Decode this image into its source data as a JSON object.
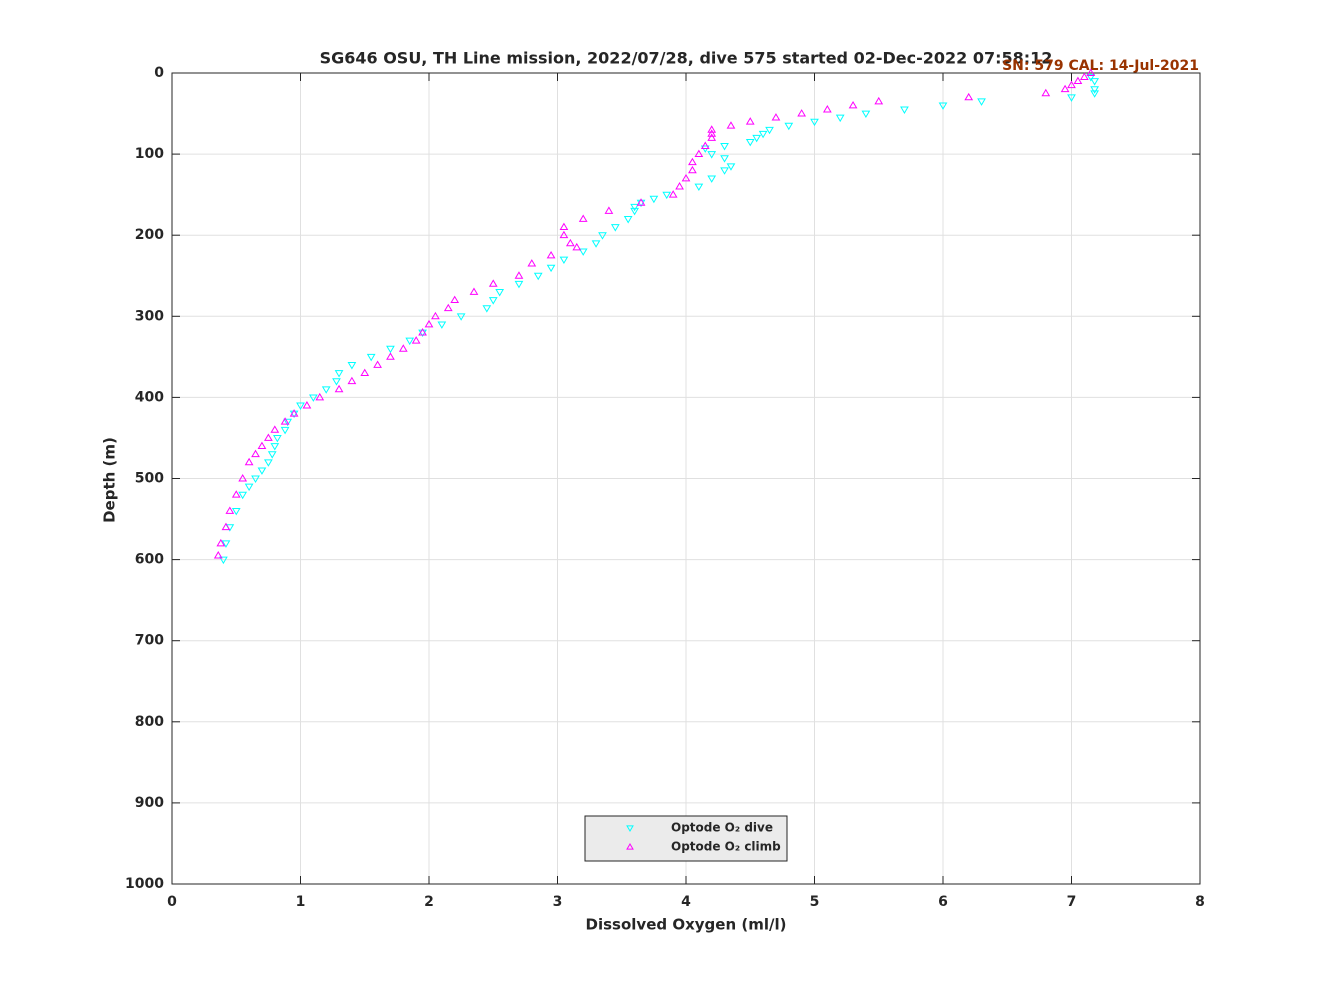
{
  "chart_data": {
    "type": "scatter",
    "title": "SG646 OSU, TH Line mission, 2022/07/28, dive 575 started 02-Dec-2022 07:58:12",
    "annotation": "SN: 579  CAL: 14-Jul-2021",
    "x_label": "Dissolved Oxygen (ml/l)",
    "y_label": "Depth (m)",
    "xlim": [
      0,
      8
    ],
    "xticks": [
      0,
      1,
      2,
      3,
      4,
      5,
      6,
      7,
      8
    ],
    "ylim": [
      0,
      1000
    ],
    "yticks": [
      0,
      100,
      200,
      300,
      400,
      500,
      600,
      700,
      800,
      900,
      1000
    ],
    "y_inverted": true,
    "grid": true,
    "legend": "bottom",
    "series": [
      {
        "name": "Optode O₂ dive",
        "color": "#00ffff",
        "marker": "v",
        "x": [
          7.15,
          7.18,
          7.18,
          7.18,
          7.0,
          6.3,
          6.0,
          5.7,
          5.4,
          5.2,
          5.0,
          4.8,
          4.65,
          4.6,
          4.55,
          4.5,
          4.3,
          4.15,
          4.2,
          4.3,
          4.35,
          4.3,
          4.2,
          4.1,
          3.85,
          3.75,
          3.65,
          3.6,
          3.6,
          3.55,
          3.45,
          3.35,
          3.3,
          3.2,
          3.05,
          2.95,
          2.85,
          2.7,
          2.55,
          2.5,
          2.45,
          2.25,
          2.1,
          1.95,
          1.85,
          1.7,
          1.55,
          1.4,
          1.3,
          1.28,
          1.2,
          1.1,
          1.0,
          0.95,
          0.9,
          0.88,
          0.82,
          0.8,
          0.78,
          0.75,
          0.7,
          0.65,
          0.6,
          0.55,
          0.5,
          0.45,
          0.42,
          0.4
        ],
        "values": [
          5,
          10,
          20,
          25,
          30,
          35,
          40,
          45,
          50,
          55,
          60,
          65,
          70,
          75,
          80,
          85,
          90,
          93,
          100,
          105,
          115,
          120,
          130,
          140,
          150,
          155,
          160,
          165,
          170,
          180,
          190,
          200,
          210,
          220,
          230,
          240,
          250,
          260,
          270,
          280,
          290,
          300,
          310,
          320,
          330,
          340,
          350,
          360,
          370,
          380,
          390,
          400,
          410,
          420,
          430,
          440,
          450,
          460,
          470,
          480,
          490,
          500,
          510,
          520,
          540,
          560,
          580,
          600
        ]
      },
      {
        "name": "Optode O₂ climb",
        "color": "#ff00ff",
        "marker": "^",
        "x": [
          7.15,
          7.1,
          7.05,
          7.0,
          6.95,
          6.8,
          6.2,
          5.5,
          5.3,
          5.1,
          4.9,
          4.7,
          4.5,
          4.35,
          4.2,
          4.2,
          4.2,
          4.15,
          4.1,
          4.05,
          4.05,
          4.0,
          3.95,
          3.9,
          3.65,
          3.4,
          3.2,
          3.05,
          3.05,
          3.1,
          3.15,
          2.95,
          2.8,
          2.7,
          2.5,
          2.35,
          2.2,
          2.15,
          2.05,
          2.0,
          1.95,
          1.9,
          1.8,
          1.7,
          1.6,
          1.5,
          1.4,
          1.3,
          1.15,
          1.05,
          0.95,
          0.88,
          0.8,
          0.75,
          0.7,
          0.65,
          0.6,
          0.55,
          0.5,
          0.45,
          0.42,
          0.38,
          0.36
        ],
        "values": [
          0,
          5,
          10,
          15,
          20,
          25,
          30,
          35,
          40,
          45,
          50,
          55,
          60,
          65,
          70,
          75,
          80,
          90,
          100,
          110,
          120,
          130,
          140,
          150,
          160,
          170,
          180,
          190,
          200,
          210,
          215,
          225,
          235,
          250,
          260,
          270,
          280,
          290,
          300,
          310,
          320,
          330,
          340,
          350,
          360,
          370,
          380,
          390,
          400,
          410,
          420,
          430,
          440,
          450,
          460,
          470,
          480,
          500,
          520,
          540,
          560,
          580,
          595
        ]
      }
    ]
  }
}
